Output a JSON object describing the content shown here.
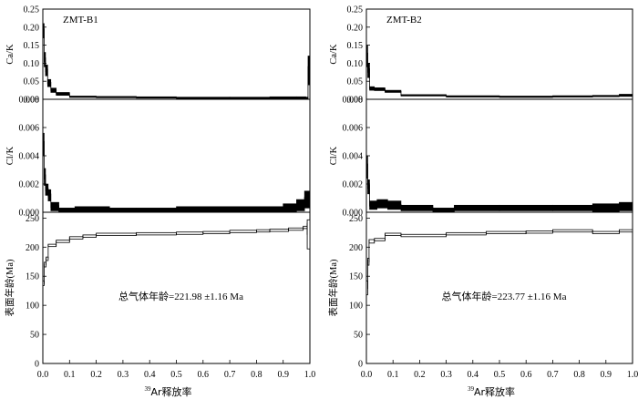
{
  "chart_data": [
    {
      "type": "line",
      "title": "ZMT-B1",
      "xlabel_sup": "39",
      "xlabel": "Ar释放率",
      "xlim": [
        0,
        1
      ],
      "xticks": [
        "0.0",
        "0.1",
        "0.2",
        "0.3",
        "0.4",
        "0.5",
        "0.6",
        "0.7",
        "0.8",
        "0.9",
        "1.0"
      ],
      "annotation": "总气体年龄=221.98 ±1.16 Ma",
      "panels": [
        {
          "ylabel": "Ca/K",
          "ylim": [
            0,
            0.25
          ],
          "yticks": [
            "0.00",
            "0.05",
            "0.10",
            "0.15",
            "0.20",
            "0.25"
          ],
          "steps": [
            {
              "x0": 0.0,
              "x1": 0.005,
              "y": 0.19,
              "e": 0.02
            },
            {
              "x0": 0.005,
              "x1": 0.01,
              "y": 0.11,
              "e": 0.02
            },
            {
              "x0": 0.01,
              "x1": 0.018,
              "y": 0.08,
              "e": 0.015
            },
            {
              "x0": 0.018,
              "x1": 0.03,
              "y": 0.045,
              "e": 0.01
            },
            {
              "x0": 0.03,
              "x1": 0.05,
              "y": 0.025,
              "e": 0.006
            },
            {
              "x0": 0.05,
              "x1": 0.1,
              "y": 0.015,
              "e": 0.004
            },
            {
              "x0": 0.1,
              "x1": 0.2,
              "y": 0.007,
              "e": 0.002
            },
            {
              "x0": 0.2,
              "x1": 0.35,
              "y": 0.006,
              "e": 0.002
            },
            {
              "x0": 0.35,
              "x1": 0.5,
              "y": 0.005,
              "e": 0.002
            },
            {
              "x0": 0.5,
              "x1": 0.7,
              "y": 0.004,
              "e": 0.002
            },
            {
              "x0": 0.7,
              "x1": 0.85,
              "y": 0.004,
              "e": 0.002
            },
            {
              "x0": 0.85,
              "x1": 0.95,
              "y": 0.004,
              "e": 0.003
            },
            {
              "x0": 0.95,
              "x1": 0.985,
              "y": 0.004,
              "e": 0.003
            },
            {
              "x0": 0.985,
              "x1": 0.993,
              "y": -0.002,
              "e": 0.008
            },
            {
              "x0": 0.993,
              "x1": 1.0,
              "y": 0.08,
              "e": 0.04
            }
          ]
        },
        {
          "ylabel": "Cl/K",
          "ylim": [
            0,
            0.008
          ],
          "yticks": [
            "0.000",
            "0.002",
            "0.004",
            "0.006",
            "0.008"
          ],
          "steps": [
            {
              "x0": 0.0,
              "x1": 0.005,
              "y": 0.0048,
              "e": 0.0008
            },
            {
              "x0": 0.005,
              "x1": 0.01,
              "y": 0.0025,
              "e": 0.0006
            },
            {
              "x0": 0.01,
              "x1": 0.02,
              "y": 0.0016,
              "e": 0.0004
            },
            {
              "x0": 0.02,
              "x1": 0.03,
              "y": 0.0012,
              "e": 0.0004
            },
            {
              "x0": 0.03,
              "x1": 0.06,
              "y": 0.0004,
              "e": 0.0003
            },
            {
              "x0": 0.06,
              "x1": 0.12,
              "y": 0.0001,
              "e": 0.0002
            },
            {
              "x0": 0.12,
              "x1": 0.25,
              "y": 0.0002,
              "e": 0.0002
            },
            {
              "x0": 0.25,
              "x1": 0.35,
              "y": 0.0001,
              "e": 0.0002
            },
            {
              "x0": 0.35,
              "x1": 0.5,
              "y": 0.0001,
              "e": 0.0002
            },
            {
              "x0": 0.5,
              "x1": 0.65,
              "y": 0.0002,
              "e": 0.0002
            },
            {
              "x0": 0.65,
              "x1": 0.8,
              "y": 0.0002,
              "e": 0.0002
            },
            {
              "x0": 0.8,
              "x1": 0.9,
              "y": 0.0002,
              "e": 0.0002
            },
            {
              "x0": 0.9,
              "x1": 0.95,
              "y": 0.0003,
              "e": 0.0003
            },
            {
              "x0": 0.95,
              "x1": 0.98,
              "y": 0.0005,
              "e": 0.0004
            },
            {
              "x0": 0.98,
              "x1": 1.0,
              "y": 0.0009,
              "e": 0.0006
            }
          ]
        },
        {
          "ylabel": "表面年龄(Ma)",
          "ylim": [
            0,
            260
          ],
          "yticks": [
            "0",
            "50",
            "100",
            "150",
            "200",
            "250"
          ],
          "steps": [
            {
              "x0": 0.0,
              "x1": 0.005,
              "y": 138,
              "e": 4
            },
            {
              "x0": 0.005,
              "x1": 0.012,
              "y": 170,
              "e": 4
            },
            {
              "x0": 0.012,
              "x1": 0.02,
              "y": 180,
              "e": 3
            },
            {
              "x0": 0.02,
              "x1": 0.05,
              "y": 203,
              "e": 2
            },
            {
              "x0": 0.05,
              "x1": 0.1,
              "y": 210,
              "e": 2
            },
            {
              "x0": 0.1,
              "x1": 0.15,
              "y": 216,
              "e": 2
            },
            {
              "x0": 0.15,
              "x1": 0.2,
              "y": 219,
              "e": 2
            },
            {
              "x0": 0.2,
              "x1": 0.35,
              "y": 222,
              "e": 2
            },
            {
              "x0": 0.35,
              "x1": 0.5,
              "y": 223,
              "e": 2
            },
            {
              "x0": 0.5,
              "x1": 0.6,
              "y": 224,
              "e": 2
            },
            {
              "x0": 0.6,
              "x1": 0.7,
              "y": 225,
              "e": 2
            },
            {
              "x0": 0.7,
              "x1": 0.8,
              "y": 227,
              "e": 2
            },
            {
              "x0": 0.8,
              "x1": 0.85,
              "y": 228,
              "e": 2
            },
            {
              "x0": 0.85,
              "x1": 0.92,
              "y": 229,
              "e": 2
            },
            {
              "x0": 0.92,
              "x1": 0.975,
              "y": 231,
              "e": 2
            },
            {
              "x0": 0.975,
              "x1": 0.99,
              "y": 234,
              "e": 2
            },
            {
              "x0": 0.99,
              "x1": 1.0,
              "y": 222,
              "e": 25
            }
          ]
        }
      ]
    },
    {
      "type": "line",
      "title": "ZMT-B2",
      "xlabel_sup": "39",
      "xlabel": "Ar释放率",
      "xlim": [
        0,
        1
      ],
      "xticks": [
        "0.0",
        "0.1",
        "0.2",
        "0.3",
        "0.4",
        "0.5",
        "0.6",
        "0.7",
        "0.8",
        "0.9",
        "1.0"
      ],
      "annotation": "总气体年龄=223.77 ±1.16 Ma",
      "panels": [
        {
          "ylabel": "Ca/K",
          "ylim": [
            0,
            0.25
          ],
          "yticks": [
            "0.00",
            "0.05",
            "0.10",
            "0.15",
            "0.20",
            "0.25"
          ],
          "steps": [
            {
              "x0": 0.0,
              "x1": 0.005,
              "y": 0.12,
              "e": 0.03
            },
            {
              "x0": 0.005,
              "x1": 0.012,
              "y": 0.08,
              "e": 0.02
            },
            {
              "x0": 0.012,
              "x1": 0.03,
              "y": 0.03,
              "e": 0.005
            },
            {
              "x0": 0.03,
              "x1": 0.07,
              "y": 0.028,
              "e": 0.004
            },
            {
              "x0": 0.07,
              "x1": 0.13,
              "y": 0.022,
              "e": 0.003
            },
            {
              "x0": 0.13,
              "x1": 0.3,
              "y": 0.011,
              "e": 0.002
            },
            {
              "x0": 0.3,
              "x1": 0.5,
              "y": 0.008,
              "e": 0.002
            },
            {
              "x0": 0.5,
              "x1": 0.7,
              "y": 0.007,
              "e": 0.002
            },
            {
              "x0": 0.7,
              "x1": 0.85,
              "y": 0.008,
              "e": 0.002
            },
            {
              "x0": 0.85,
              "x1": 0.95,
              "y": 0.009,
              "e": 0.002
            },
            {
              "x0": 0.95,
              "x1": 1.0,
              "y": 0.011,
              "e": 0.003
            }
          ]
        },
        {
          "ylabel": "Cl/K",
          "ylim": [
            0,
            0.008
          ],
          "yticks": [
            "0.000",
            "0.002",
            "0.004",
            "0.006",
            "0.008"
          ],
          "steps": [
            {
              "x0": 0.0,
              "x1": 0.005,
              "y": 0.0032,
              "e": 0.0008
            },
            {
              "x0": 0.005,
              "x1": 0.012,
              "y": 0.0018,
              "e": 0.0005
            },
            {
              "x0": 0.012,
              "x1": 0.04,
              "y": 0.0005,
              "e": 0.0003
            },
            {
              "x0": 0.04,
              "x1": 0.08,
              "y": 0.0006,
              "e": 0.0003
            },
            {
              "x0": 0.08,
              "x1": 0.13,
              "y": 0.0005,
              "e": 0.0003
            },
            {
              "x0": 0.13,
              "x1": 0.25,
              "y": 0.0003,
              "e": 0.0002
            },
            {
              "x0": 0.25,
              "x1": 0.33,
              "y": 0.0001,
              "e": 0.0002
            },
            {
              "x0": 0.33,
              "x1": 0.5,
              "y": 0.0003,
              "e": 0.0002
            },
            {
              "x0": 0.5,
              "x1": 0.7,
              "y": 0.0003,
              "e": 0.0002
            },
            {
              "x0": 0.7,
              "x1": 0.85,
              "y": 0.0003,
              "e": 0.0002
            },
            {
              "x0": 0.85,
              "x1": 0.95,
              "y": 0.0003,
              "e": 0.0003
            },
            {
              "x0": 0.95,
              "x1": 1.0,
              "y": 0.0004,
              "e": 0.0003
            }
          ]
        },
        {
          "ylabel": "表面年龄(Ma)",
          "ylim": [
            0,
            260
          ],
          "yticks": [
            "0",
            "50",
            "100",
            "150",
            "200",
            "250"
          ],
          "steps": [
            {
              "x0": 0.0,
              "x1": 0.005,
              "y": 130,
              "e": 12
            },
            {
              "x0": 0.005,
              "x1": 0.01,
              "y": 175,
              "e": 6
            },
            {
              "x0": 0.01,
              "x1": 0.03,
              "y": 210,
              "e": 3
            },
            {
              "x0": 0.03,
              "x1": 0.07,
              "y": 213,
              "e": 2
            },
            {
              "x0": 0.07,
              "x1": 0.13,
              "y": 222,
              "e": 2
            },
            {
              "x0": 0.13,
              "x1": 0.3,
              "y": 220,
              "e": 2
            },
            {
              "x0": 0.3,
              "x1": 0.45,
              "y": 223,
              "e": 2
            },
            {
              "x0": 0.45,
              "x1": 0.6,
              "y": 225,
              "e": 2
            },
            {
              "x0": 0.6,
              "x1": 0.7,
              "y": 226,
              "e": 2
            },
            {
              "x0": 0.7,
              "x1": 0.85,
              "y": 228,
              "e": 2
            },
            {
              "x0": 0.85,
              "x1": 0.95,
              "y": 225,
              "e": 2
            },
            {
              "x0": 0.95,
              "x1": 1.0,
              "y": 228,
              "e": 2
            }
          ]
        }
      ]
    }
  ]
}
